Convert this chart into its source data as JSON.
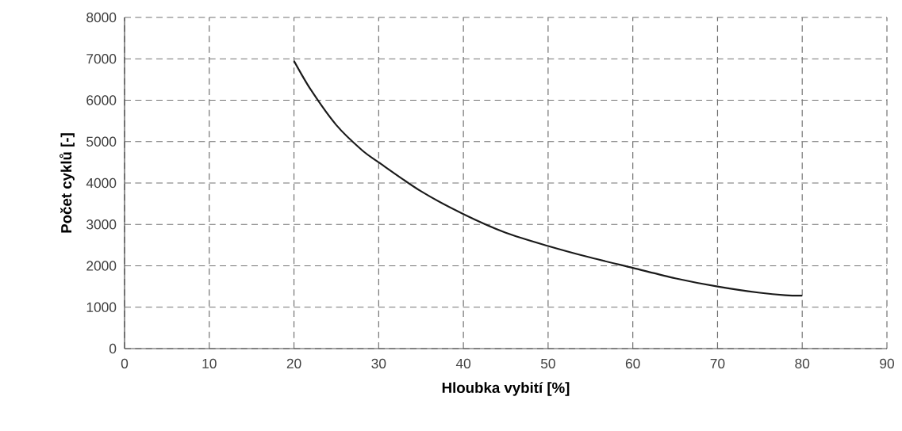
{
  "chart_data": {
    "type": "line",
    "xlabel": "Hloubka vybití [%]",
    "ylabel": "Počet cyklů [-]",
    "x": [
      20,
      22,
      25,
      28,
      30,
      35,
      40,
      45,
      50,
      55,
      60,
      65,
      70,
      75,
      78,
      80
    ],
    "series": [
      {
        "color": "#1a1a1a",
        "values": [
          6950,
          6250,
          5400,
          4800,
          4500,
          3800,
          3250,
          2800,
          2480,
          2200,
          1950,
          1700,
          1500,
          1350,
          1290,
          1280
        ]
      }
    ],
    "xlim": [
      0,
      90
    ],
    "ylim": [
      0,
      8000
    ],
    "xticks": [
      0,
      10,
      20,
      30,
      40,
      50,
      60,
      70,
      80,
      90
    ],
    "yticks": [
      0,
      1000,
      2000,
      3000,
      4000,
      5000,
      6000,
      7000,
      8000
    ],
    "grid": true,
    "marker": "none",
    "line_style": "solid"
  }
}
